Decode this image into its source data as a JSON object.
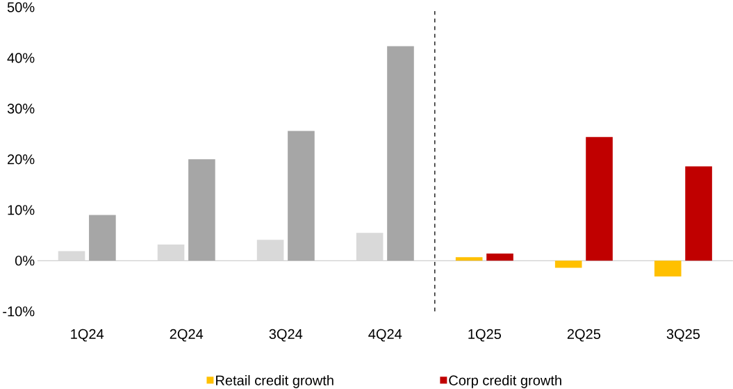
{
  "chart_data": {
    "type": "bar",
    "categories": [
      "1Q24",
      "2Q24",
      "3Q24",
      "4Q24",
      "1Q25",
      "2Q25",
      "3Q25"
    ],
    "series": [
      {
        "name": "Retail credit growth",
        "color": "#ffc000",
        "colors": [
          "#d9d9d9",
          "#d9d9d9",
          "#d9d9d9",
          "#d9d9d9",
          "#ffc000",
          "#ffc000",
          "#ffc000"
        ],
        "values": [
          1.9,
          3.2,
          4.1,
          5.5,
          0.7,
          -1.4,
          -3.1
        ]
      },
      {
        "name": "Corp credit growth",
        "color": "#c00000",
        "colors": [
          "#a6a6a6",
          "#a6a6a6",
          "#a6a6a6",
          "#a6a6a6",
          "#c00000",
          "#c00000",
          "#c00000"
        ],
        "values": [
          9.0,
          20.0,
          25.6,
          42.3,
          1.4,
          24.4,
          18.6
        ]
      }
    ],
    "ylim": [
      -10,
      50
    ],
    "yticks": [
      {
        "value": -10,
        "label": "-10%"
      },
      {
        "value": 0,
        "label": "0%"
      },
      {
        "value": 10,
        "label": "10%"
      },
      {
        "value": 20,
        "label": "20%"
      },
      {
        "value": 30,
        "label": "30%"
      },
      {
        "value": 40,
        "label": "40%"
      },
      {
        "value": 50,
        "label": "50%"
      }
    ],
    "legend": "bottom"
  }
}
